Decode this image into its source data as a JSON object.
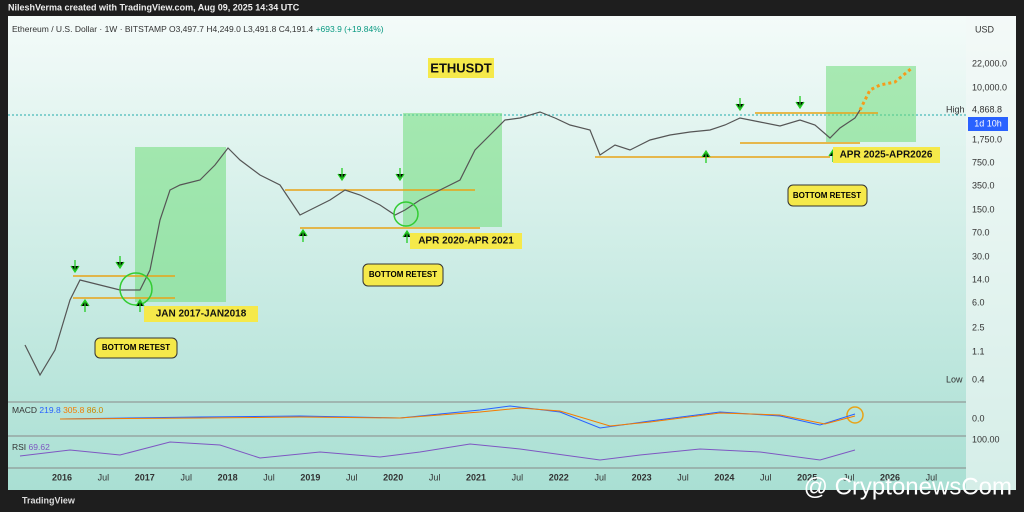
{
  "header": {
    "credit": "NileshVerma created with TradingView.com, Aug 09, 2025 14:34 UTC"
  },
  "legend": {
    "symbol": "Ethereum / U.S. Dollar · 1W · BITSTAMP",
    "open": "O3,497.7",
    "high": "H4,249.0",
    "low": "L3,491.8",
    "close": "C4,191.4",
    "change": "+693.9 (+19.84%)"
  },
  "title": "ETHUSDT",
  "price_axis": {
    "currency": "USD",
    "labels": [
      "22,000.0",
      "10,000.0",
      "4,868.8",
      "1,750.0",
      "750.0",
      "350.0",
      "150.0",
      "70.0",
      "30.0",
      "14.0",
      "6.0",
      "2.5",
      "1.1",
      "0.4"
    ],
    "high_label": "High",
    "low_label": "Low",
    "countdown": "1d 10h"
  },
  "time_axis": [
    "2016",
    "Jul",
    "2017",
    "Jul",
    "2018",
    "Jul",
    "2019",
    "Jul",
    "2020",
    "Jul",
    "2021",
    "Jul",
    "2022",
    "Jul",
    "2023",
    "Jul",
    "2024",
    "Jul",
    "2025",
    "Jul",
    "2026",
    "Jul"
  ],
  "annotations": {
    "cycles": [
      "JAN 2017-JAN2018",
      "APR 2020-APR 2021",
      "APR 2025-APR2026"
    ],
    "retests": [
      "BOTTOM RETEST",
      "BOTTOM RETEST",
      "BOTTOM RETEST"
    ]
  },
  "macd": {
    "name": "MACD",
    "values": [
      "219.8",
      "305.8",
      "86.0"
    ],
    "axis": "0.0"
  },
  "rsi": {
    "name": "RSI",
    "value": "69.62",
    "axis": "100.00"
  },
  "footer": {
    "brand": "TradingView",
    "watermark": "@ CryptonewsCom"
  }
}
